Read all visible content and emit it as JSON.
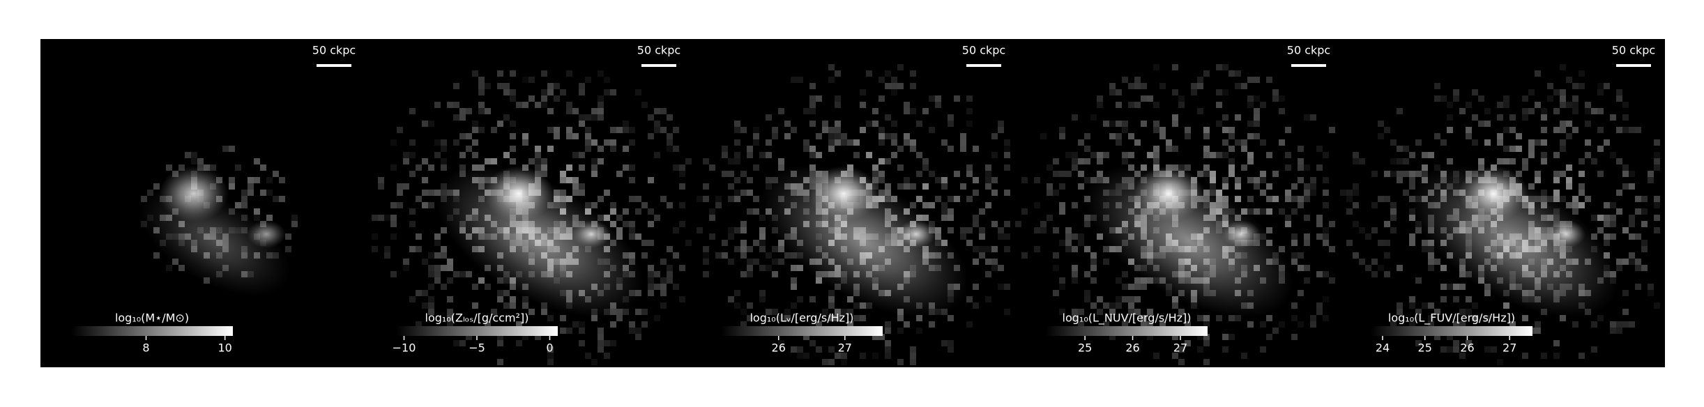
{
  "chart_data": [
    {
      "type": "image",
      "scale_label": "50 ckpc",
      "colorbar_label": "log₁₀(M⋆/M⊙)",
      "clim": [
        6.1,
        10.2
      ],
      "cticks": [
        8,
        10
      ]
    },
    {
      "type": "image",
      "scale_label": "50 ckpc",
      "colorbar_label": "log₁₀(Zₗₒₛ/[g/ccm²])",
      "clim": [
        -10.55,
        0.55
      ],
      "cticks": [
        {
          "value": -10,
          "label": "−10"
        },
        {
          "value": -5,
          "label": "−5"
        },
        0
      ]
    },
    {
      "type": "image",
      "scale_label": "50 ckpc",
      "colorbar_label": "log₁₀(Lᵥ/[erg/s/Hz])",
      "clim": [
        25.13,
        27.57
      ],
      "cticks": [
        26,
        27
      ]
    },
    {
      "type": "image",
      "scale_label": "50 ckpc",
      "colorbar_label": "log₁₀(L_NUV/[erg/s/Hz])",
      "clim": [
        24.18,
        27.57
      ],
      "cticks": [
        25,
        26,
        27
      ]
    },
    {
      "type": "image",
      "scale_label": "50 ckpc",
      "colorbar_label": "log₁₀(L_FUV/[erg/s/Hz])",
      "clim": [
        23.72,
        27.54
      ],
      "cticks": [
        24,
        25,
        26,
        27
      ]
    }
  ]
}
